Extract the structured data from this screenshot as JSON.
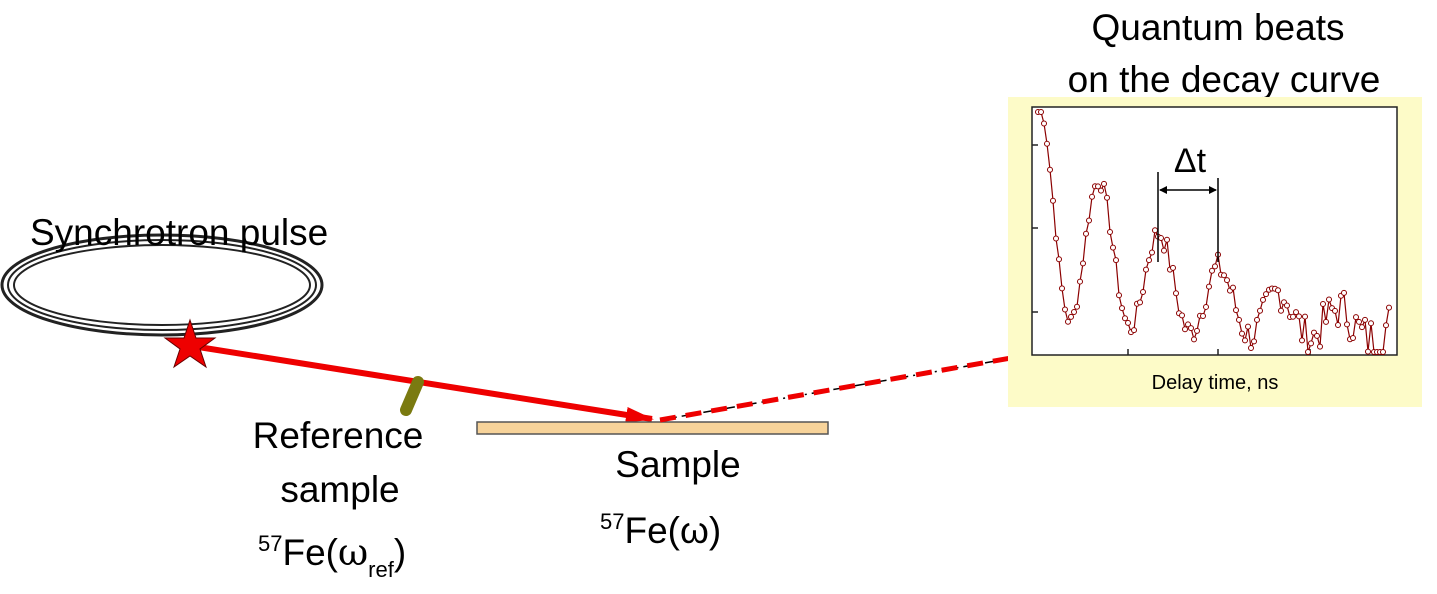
{
  "inset": {
    "title": [
      "Quantum beats",
      "on the decay curve"
    ],
    "x_label": "Delay time, ns",
    "marker": "Δt"
  },
  "source": {
    "label": "Synchrotron pulse"
  },
  "reference": {
    "lines": [
      "Reference",
      "sample"
    ],
    "formula": {
      "isotope": "57",
      "element": "Fe(",
      "symbol": "ω",
      "subscript": "ref",
      "close": ")"
    }
  },
  "sample": {
    "label": "Sample",
    "formula": {
      "isotope": "57",
      "element": "Fe(ω)"
    }
  }
}
